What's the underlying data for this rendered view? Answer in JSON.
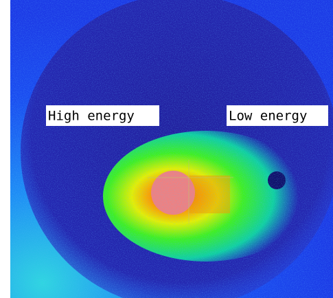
{
  "labels": {
    "high_energy": "High energy",
    "low_energy": "Low energy"
  }
}
